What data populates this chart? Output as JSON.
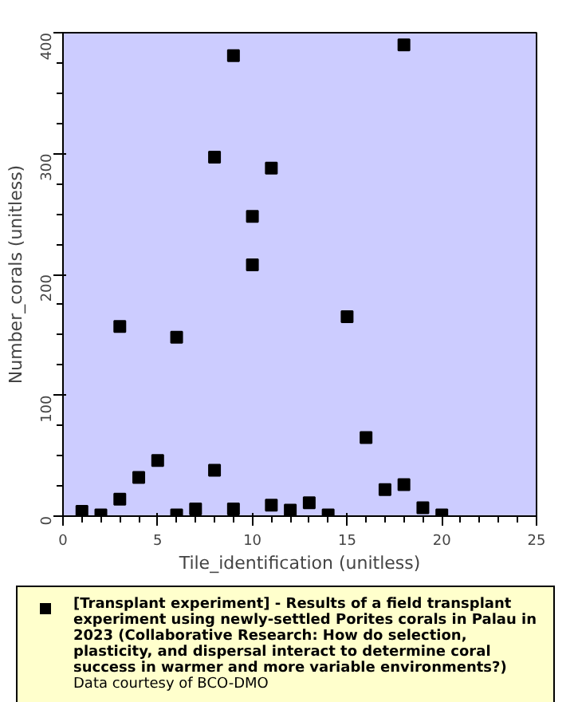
{
  "chart_data": {
    "type": "scatter",
    "xlabel": "Tile_identification (unitless)",
    "ylabel": "Number_corals (unitless)",
    "xlim": [
      0,
      25
    ],
    "xticks": [
      0,
      5,
      10,
      15,
      20,
      25
    ],
    "ylim": [
      0,
      400
    ],
    "yticks": [
      0,
      100,
      200,
      300,
      400
    ],
    "grid": false,
    "legend": "bottom",
    "marker": "square",
    "annotations": [
      "Data courtesy of BCO-DMO"
    ],
    "series": [
      {
        "name": "[Transplant experiment] - Results of a field transplant experiment using newly-settled Porites corals in Palau in 2023 (Collaborative Research: How do selection, plasticity, and dispersal interact to determine coral success in warmer and more variable environments?)",
        "color": "#000000",
        "x": [
          1,
          2,
          3,
          3,
          4,
          5,
          6,
          6,
          7,
          8,
          8,
          9,
          9,
          10,
          10,
          11,
          11,
          12,
          13,
          14,
          15,
          16,
          17,
          18,
          18,
          19,
          20
        ],
        "values": [
          4,
          1,
          14,
          157,
          32,
          46,
          1,
          148,
          6,
          297,
          38,
          381,
          6,
          248,
          208,
          288,
          9,
          5,
          11,
          1,
          165,
          65,
          22,
          390,
          26,
          7,
          1
        ]
      }
    ]
  }
}
